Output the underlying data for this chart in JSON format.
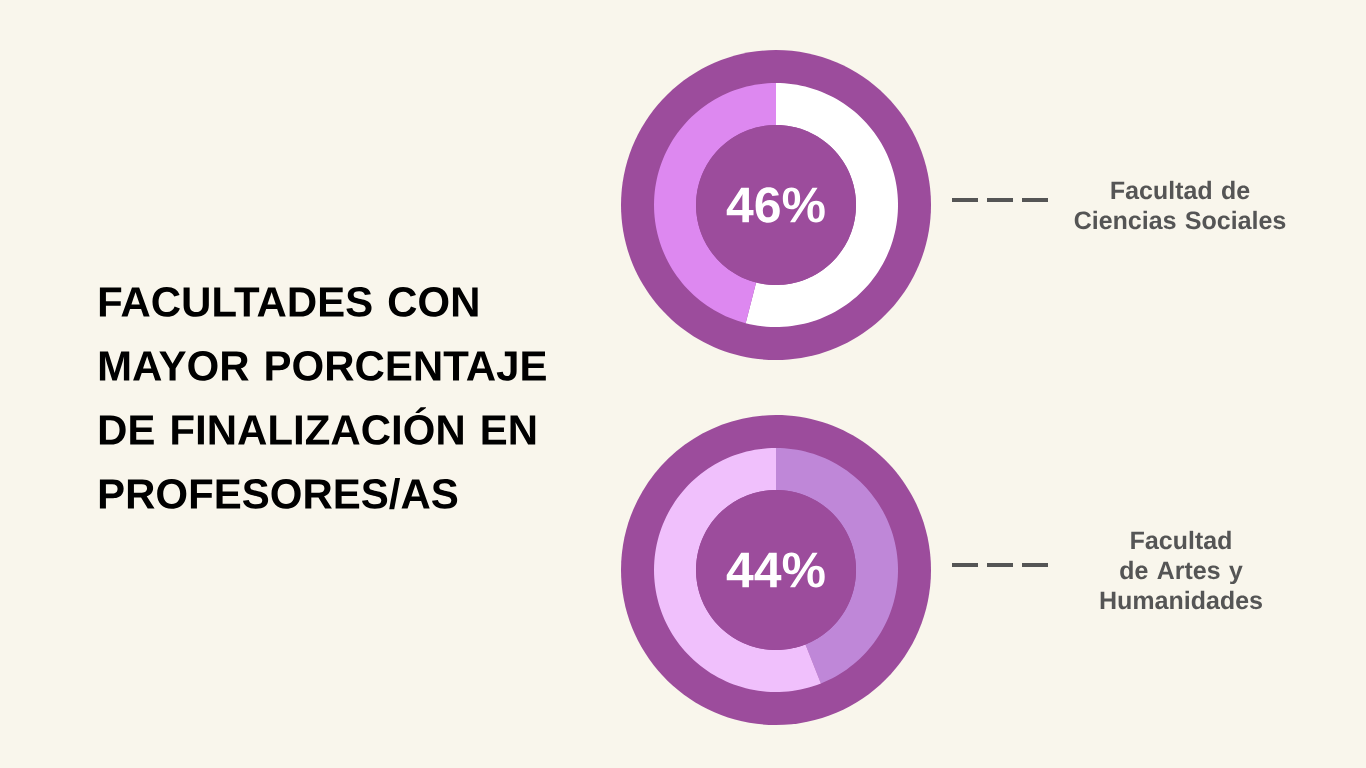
{
  "chart_data": [
    {
      "type": "other",
      "title": "FACULTADES CON MAYOR PORCENTAJE DE FINALIZACIÓN EN PROFESORES/AS"
    },
    {
      "type": "donut",
      "title": "Facultad de Ciencias Sociales",
      "categories": [
        null,
        null
      ],
      "values": [
        54,
        46
      ],
      "colors": [
        "#ffffff",
        "#dd88f0"
      ],
      "annotations": [
        "46%"
      ]
    },
    {
      "type": "donut",
      "title": "Facultad de Artes y Humanidades",
      "categories": [
        null,
        null
      ],
      "values": [
        44,
        56
      ],
      "colors": [
        "#bf87d8",
        "#f0c0fc"
      ],
      "annotations": [
        "44%"
      ]
    }
  ]
}
